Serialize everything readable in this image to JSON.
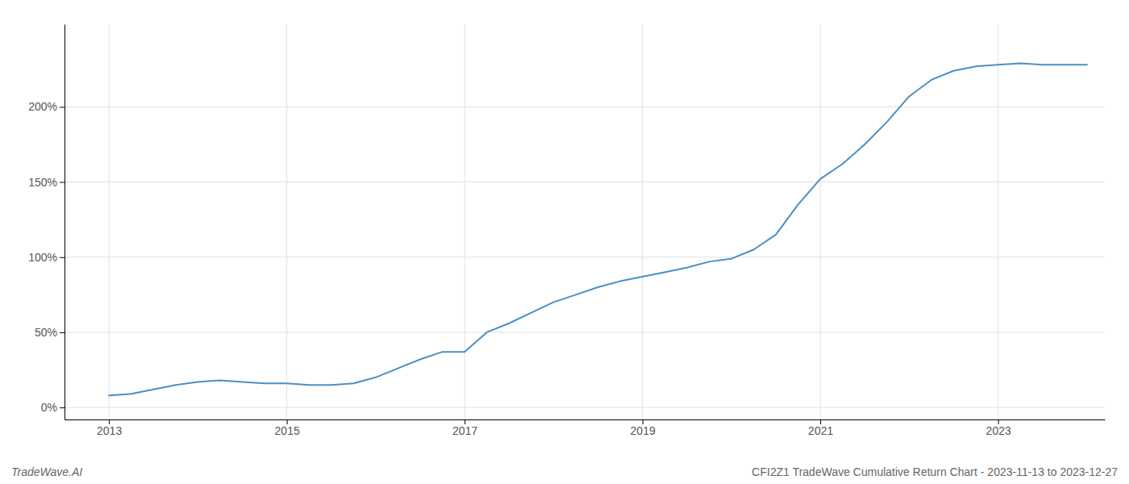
{
  "chart_data": {
    "type": "line",
    "title": "CFI2Z1 TradeWave Cumulative Return Chart - 2023-11-13 to 2023-12-27",
    "annotations": [
      "TradeWave.AI"
    ],
    "x": [
      2013.0,
      2013.25,
      2013.5,
      2013.75,
      2014.0,
      2014.25,
      2014.5,
      2014.75,
      2015.0,
      2015.25,
      2015.5,
      2015.75,
      2016.0,
      2016.25,
      2016.5,
      2016.75,
      2017.0,
      2017.25,
      2017.5,
      2017.75,
      2018.0,
      2018.25,
      2018.5,
      2018.75,
      2019.0,
      2019.25,
      2019.5,
      2019.75,
      2020.0,
      2020.25,
      2020.5,
      2020.75,
      2021.0,
      2021.25,
      2021.5,
      2021.75,
      2022.0,
      2022.25,
      2022.5,
      2022.75,
      2023.0,
      2023.25,
      2023.5,
      2023.75,
      2024.0
    ],
    "values": [
      8,
      9,
      12,
      15,
      17,
      18,
      17,
      16,
      16,
      15,
      15,
      16,
      20,
      26,
      32,
      37,
      37,
      50,
      56,
      63,
      70,
      75,
      80,
      84,
      87,
      90,
      93,
      97,
      99,
      105,
      115,
      135,
      152,
      162,
      175,
      190,
      207,
      218,
      224,
      227,
      228,
      229,
      228,
      228,
      228
    ],
    "color": "#4a90c4",
    "xlim": [
      2012.5,
      2024.2
    ],
    "ylim": [
      -8,
      255
    ],
    "xticks": [
      2013,
      2015,
      2017,
      2019,
      2021,
      2023
    ],
    "yticks": [
      {
        "value": 0,
        "label": "0%"
      },
      {
        "value": 50,
        "label": "50%"
      },
      {
        "value": 100,
        "label": "100%"
      },
      {
        "value": 150,
        "label": "150%"
      },
      {
        "value": 200,
        "label": "200%"
      }
    ],
    "grid": true
  }
}
